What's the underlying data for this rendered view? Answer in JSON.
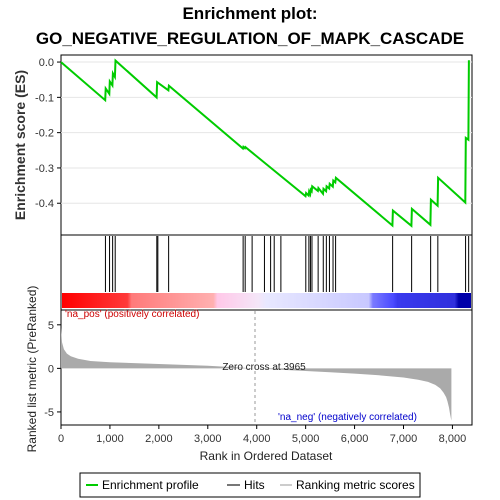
{
  "chart_data": [
    {
      "panel": "enrichment",
      "type": "line",
      "title": "Enrichment plot:",
      "subtitle": "GO_NEGATIVE_REGULATION_OF_MAPK_CASCADE",
      "ylabel": "Enrichment score (ES)",
      "ylim": [
        -0.49,
        0.02
      ],
      "xlim": [
        0,
        8000
      ],
      "yticks": [
        0.0,
        -0.1,
        -0.2,
        -0.3,
        -0.4
      ],
      "ytick_labels": [
        "0.0",
        "-0.1",
        "-0.2",
        "-0.3",
        "-0.4"
      ],
      "series": [
        {
          "name": "Enrichment profile",
          "color": "#00cc00",
          "x": [
            0,
            860,
            870,
            940,
            950,
            1000,
            1010,
            1050,
            1060,
            1860,
            1870,
            2090,
            2100,
            3540,
            3550,
            3580,
            3590,
            4760,
            4770,
            4820,
            4830,
            4850,
            4860,
            4880,
            4890,
            5000,
            5010,
            5100,
            5110,
            5160,
            5170,
            5220,
            5230,
            5290,
            5300,
            5340,
            5350,
            6450,
            6460,
            6820,
            6830,
            7190,
            7200,
            7330,
            7340,
            7870,
            7880,
            7930,
            7940
          ],
          "y": [
            0.0,
            -0.108,
            -0.075,
            -0.09,
            -0.055,
            -0.066,
            -0.032,
            -0.042,
            0.004,
            -0.1,
            -0.057,
            -0.08,
            -0.067,
            -0.245,
            -0.24,
            -0.244,
            -0.241,
            -0.38,
            -0.371,
            -0.378,
            -0.367,
            -0.374,
            -0.362,
            -0.366,
            -0.352,
            -0.365,
            -0.357,
            -0.373,
            -0.359,
            -0.366,
            -0.352,
            -0.358,
            -0.345,
            -0.353,
            -0.336,
            -0.341,
            -0.328,
            -0.463,
            -0.421,
            -0.464,
            -0.416,
            -0.461,
            -0.39,
            -0.407,
            -0.328,
            -0.398,
            -0.215,
            -0.22,
            0.005
          ]
        }
      ]
    },
    {
      "panel": "hits",
      "type": "scatter",
      "series": [
        {
          "name": "Hits",
          "color": "#000000",
          "x": [
            865,
            945,
            1005,
            1055,
            1865,
            1885,
            2095,
            3545,
            3585,
            3720,
            3960,
            4080,
            4150,
            4280,
            4765,
            4825,
            4855,
            4885,
            5005,
            5105,
            5165,
            5225,
            5295,
            5345,
            6455,
            6825,
            7195,
            7335,
            7875,
            7935
          ]
        }
      ]
    },
    {
      "panel": "ranked-list",
      "type": "area",
      "xlabel": "Rank in Ordered Dataset",
      "ylabel": "Ranked list metric (PreRanked)",
      "xlim": [
        0,
        8400
      ],
      "ylim": [
        -6.5,
        6.7
      ],
      "xticks": [
        0,
        1000,
        2000,
        3000,
        4000,
        5000,
        6000,
        7000,
        8000
      ],
      "xtick_labels": [
        "0",
        "1,000",
        "2,000",
        "3,000",
        "4,000",
        "5,000",
        "6,000",
        "7,000",
        "8,000"
      ],
      "yticks": [
        5,
        0,
        -5
      ],
      "ytick_labels": [
        "5",
        "0",
        "-5"
      ],
      "series": [
        {
          "name": "Ranking metric scores",
          "color": "#aaaaaa",
          "x": [
            0,
            20,
            60,
            120,
            200,
            350,
            600,
            1000,
            1500,
            2000,
            2500,
            3000,
            3500,
            3965,
            4500,
            5000,
            5500,
            6000,
            6500,
            7000,
            7300,
            7500,
            7650,
            7750,
            7820,
            7870,
            7900,
            7930,
            7950,
            7970,
            7980
          ],
          "y": [
            4.7,
            3.0,
            2.2,
            1.7,
            1.4,
            1.1,
            0.85,
            0.7,
            0.6,
            0.5,
            0.4,
            0.3,
            0.15,
            0.0,
            -0.15,
            -0.3,
            -0.45,
            -0.6,
            -0.8,
            -1.05,
            -1.3,
            -1.55,
            -1.9,
            -2.3,
            -2.8,
            -3.3,
            -3.8,
            -4.5,
            -5.2,
            -5.8,
            -6.0
          ]
        }
      ],
      "annotations": [
        {
          "text": "Zero cross at 3965",
          "x": 3965
        },
        {
          "text": "'na_pos' (positively correlated)",
          "color": "#cc0000"
        },
        {
          "text": "'na_neg' (negatively correlated)",
          "color": "#0000cc"
        }
      ]
    }
  ],
  "colors": {
    "enrichment": "#00cc00",
    "hits": "#000000",
    "ranking": "#aaaaaa",
    "pos": "#ff0000",
    "neg": "#0000cc"
  },
  "legend": {
    "items": [
      {
        "label": "Enrichment profile",
        "color": "#00cc00"
      },
      {
        "label": "Hits",
        "color": "#777777"
      },
      {
        "label": "Ranking metric scores",
        "color": "#cccccc"
      }
    ]
  }
}
